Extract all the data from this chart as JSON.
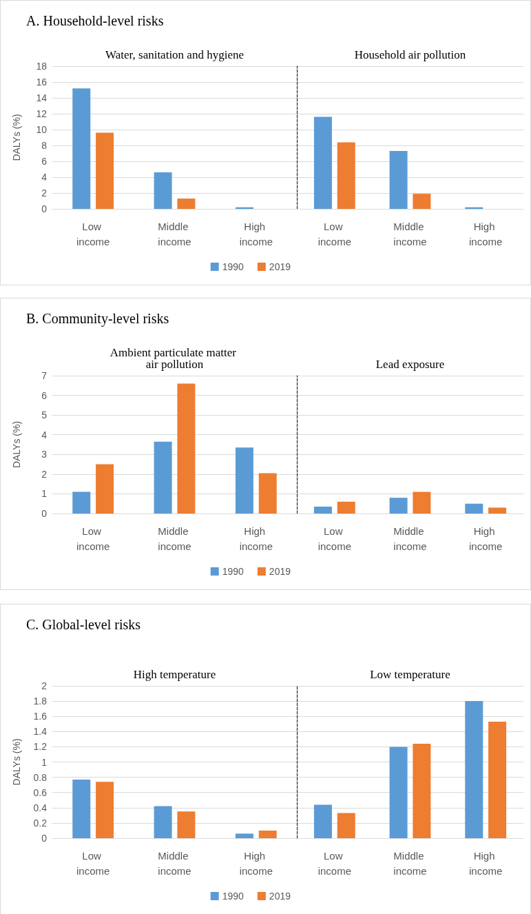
{
  "chart_data": [
    {
      "type": "bar",
      "title": "A. Household-level risks",
      "subtitle": "Water, sanitation and hygiene",
      "ylabel": "DALYs (%)",
      "categories": [
        "Low income",
        "Middle income",
        "High income"
      ],
      "series": [
        {
          "name": "1990",
          "color": "#5b9bd5",
          "values": [
            15.2,
            4.6,
            0.2
          ]
        },
        {
          "name": "2019",
          "color": "#ed7d31",
          "values": [
            9.6,
            1.3,
            0
          ]
        }
      ],
      "ylim": [
        0,
        18
      ],
      "yticks": [
        0,
        2,
        4,
        6,
        8,
        10,
        12,
        14,
        16,
        18
      ],
      "grid": "y",
      "legend": "bottom right"
    },
    {
      "type": "bar",
      "subtitle": "Household air pollution",
      "categories": [
        "Low income",
        "Middle income",
        "High income"
      ],
      "series": [
        {
          "color": "#5b9bd5",
          "values": [
            11.6,
            7.3,
            0.2
          ]
        },
        {
          "color": "#ed7d31",
          "values": [
            8.4,
            1.9,
            0
          ]
        }
      ],
      "ylim": [
        0,
        18
      ],
      "yticks": [
        0,
        2,
        4,
        6,
        8,
        10,
        12,
        14,
        16,
        18
      ],
      "grid": "y",
      "tick_labels": "x"
    },
    {
      "type": "bar",
      "title": "B. Community-level risks",
      "subtitle": "Ambient particulate matter air pollution",
      "ylabel": "DALYs (%)",
      "categories": [
        "Low income",
        "Middle income",
        "High income"
      ],
      "series": [
        {
          "name": "1990",
          "color": "#5b9bd5",
          "values": [
            1.1,
            3.65,
            3.35
          ]
        },
        {
          "name": "2019",
          "color": "#ed7d31",
          "values": [
            2.5,
            6.6,
            2.05
          ]
        }
      ],
      "ylim": [
        0,
        7
      ],
      "yticks": [
        0,
        1,
        2,
        3,
        4,
        5,
        6,
        7
      ],
      "grid": "y",
      "legend": "bottom right"
    },
    {
      "type": "bar",
      "subtitle": "Lead exposure",
      "categories": [
        "Low income",
        "Middle income",
        "High income"
      ],
      "series": [
        {
          "color": "#5b9bd5",
          "values": [
            0.35,
            0.8,
            0.5
          ]
        },
        {
          "color": "#ed7d31",
          "values": [
            0.6,
            1.1,
            0.3
          ]
        }
      ],
      "ylim": [
        0,
        7
      ],
      "yticks": [
        0,
        1,
        2,
        3,
        4,
        5,
        6,
        7
      ],
      "grid": "y",
      "tick_labels": "x"
    },
    {
      "type": "bar",
      "title": "C. Global-level risks",
      "subtitle": "High temperature",
      "ylabel": "DALYs (%)",
      "categories": [
        "Low income",
        "Middle income",
        "High income"
      ],
      "series": [
        {
          "name": "1990",
          "color": "#5b9bd5",
          "values": [
            0.77,
            0.42,
            0.06
          ]
        },
        {
          "name": "2019",
          "color": "#ed7d31",
          "values": [
            0.74,
            0.35,
            0.1
          ]
        }
      ],
      "ylim": [
        0,
        2
      ],
      "yticks": [
        0,
        0.2,
        0.4,
        0.6,
        0.8,
        1,
        1.2,
        1.4,
        1.6,
        1.8,
        2
      ],
      "grid": "y",
      "legend": "bottom right"
    },
    {
      "type": "bar",
      "subtitle": "Low temperature",
      "categories": [
        "Low income",
        "Middle income",
        "High income"
      ],
      "series": [
        {
          "color": "#5b9bd5",
          "values": [
            0.44,
            1.2,
            1.8
          ]
        },
        {
          "color": "#ed7d31",
          "values": [
            0.33,
            1.24,
            1.53
          ]
        }
      ],
      "ylim": [
        0,
        2
      ],
      "yticks": [
        0,
        0.2,
        0.4,
        0.6,
        0.8,
        1,
        1.2,
        1.4,
        1.6,
        1.8,
        2
      ],
      "grid": "y",
      "tick_labels": "x"
    }
  ]
}
